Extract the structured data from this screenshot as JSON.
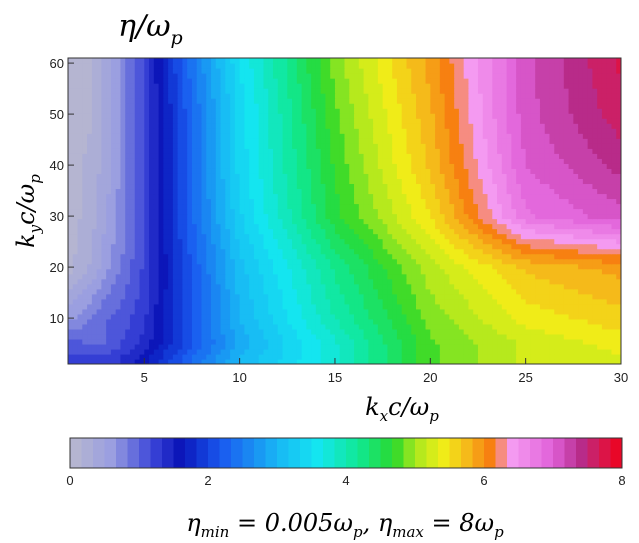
{
  "chart_data": {
    "type": "heatmap",
    "title": "η/ω",
    "title_sub": "p",
    "xlabel": {
      "main": "k",
      "sub1": "x",
      "mid": "c/ω",
      "sub2": "p"
    },
    "ylabel": {
      "main": "k",
      "sub1": "y",
      "mid": "c/ω",
      "sub2": "p"
    },
    "xlim": [
      1,
      30
    ],
    "ylim": [
      1,
      61
    ],
    "x_ticks": [
      5,
      10,
      15,
      20,
      25,
      30
    ],
    "y_ticks": [
      10,
      20,
      30,
      40,
      50,
      60
    ],
    "field_samples": {
      "x": [
        1,
        2,
        3,
        4,
        5,
        7,
        10,
        15,
        20,
        25,
        30
      ],
      "y": [
        2,
        5,
        10,
        20,
        30,
        40,
        50,
        60
      ],
      "values_note_free": true,
      "eta": [
        [
          1.2,
          1.2,
          1.2,
          1.4,
          1.6,
          2.2,
          3.0,
          3.8,
          4.8,
          5.2,
          5.3
        ],
        [
          1.1,
          1.0,
          1.0,
          1.2,
          1.4,
          2.0,
          2.9,
          3.8,
          4.8,
          5.2,
          5.4
        ],
        [
          0.6,
          0.8,
          1.0,
          1.1,
          1.3,
          2.0,
          3.0,
          4.0,
          4.9,
          5.4,
          5.6
        ],
        [
          0.1,
          0.3,
          0.6,
          0.9,
          1.2,
          2.0,
          3.1,
          4.2,
          5.1,
          5.7,
          5.9
        ],
        [
          0.1,
          0.2,
          0.5,
          0.8,
          1.2,
          2.1,
          3.3,
          4.6,
          5.5,
          6.8,
          7.1
        ],
        [
          0.1,
          0.2,
          0.4,
          0.8,
          1.2,
          2.1,
          3.4,
          4.7,
          5.7,
          7.0,
          7.4
        ],
        [
          0.1,
          0.1,
          0.4,
          0.8,
          1.2,
          2.1,
          3.4,
          4.8,
          5.8,
          7.1,
          7.6
        ],
        [
          0.1,
          0.1,
          0.4,
          0.8,
          1.2,
          2.2,
          3.5,
          4.9,
          5.9,
          7.1,
          7.7
        ]
      ]
    },
    "colorbar": {
      "range": [
        0,
        8
      ],
      "ticks": [
        0,
        2,
        4,
        6,
        8
      ],
      "stops": [
        {
          "v": 0.0,
          "c": "#b9b9ce"
        },
        {
          "v": 0.6,
          "c": "#9a9ee0"
        },
        {
          "v": 1.2,
          "c": "#3a44d8"
        },
        {
          "v": 1.6,
          "c": "#0a14b8"
        },
        {
          "v": 2.2,
          "c": "#1a5af0"
        },
        {
          "v": 3.0,
          "c": "#19b6f5"
        },
        {
          "v": 3.6,
          "c": "#14e6f0"
        },
        {
          "v": 4.2,
          "c": "#10e890"
        },
        {
          "v": 4.7,
          "c": "#2bd82b"
        },
        {
          "v": 5.0,
          "c": "#a7e81e"
        },
        {
          "v": 5.4,
          "c": "#f0ee18"
        },
        {
          "v": 5.8,
          "c": "#f6b21a"
        },
        {
          "v": 6.1,
          "c": "#f77d10"
        },
        {
          "v": 6.4,
          "c": "#f59cf2"
        },
        {
          "v": 7.0,
          "c": "#e060d8"
        },
        {
          "v": 7.4,
          "c": "#b62c8c"
        },
        {
          "v": 7.7,
          "c": "#d81850"
        },
        {
          "v": 8.0,
          "c": "#f00018"
        }
      ]
    },
    "caption": {
      "a": "η",
      "a_sub": "min",
      "b": " = 0.005ω",
      "b_sub": "p",
      "c": ", η",
      "c_sub": "max",
      "d": " = 8ω",
      "d_sub": "p"
    }
  }
}
